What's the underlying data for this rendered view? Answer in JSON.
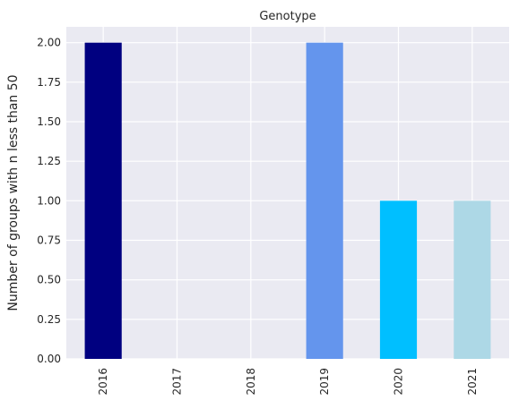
{
  "chart_data": {
    "type": "bar",
    "title": "Genotype",
    "xlabel": "",
    "ylabel": "Number of groups with n less than 50",
    "categories": [
      "2016",
      "2017",
      "2018",
      "2019",
      "2020",
      "2021"
    ],
    "values": [
      2,
      0,
      0,
      2,
      1,
      1
    ],
    "bar_colors": [
      "#000080",
      "#000080",
      "#000080",
      "#6495ED",
      "#00BFFF",
      "#ADD8E6"
    ],
    "ylim": [
      0,
      2.1
    ],
    "yticks": [
      "0.00",
      "0.25",
      "0.50",
      "0.75",
      "1.00",
      "1.25",
      "1.50",
      "1.75",
      "2.00"
    ],
    "grid": true,
    "background_color": "#EAEAF2",
    "grid_color": "#FFFFFF"
  }
}
